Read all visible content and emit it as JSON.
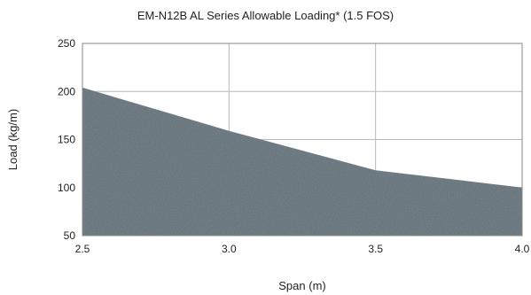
{
  "chart_data": {
    "type": "area",
    "title": "EM-N12B AL Series Allowable Loading* (1.5 FOS)",
    "xlabel": "Span (m)",
    "ylabel": "Load (kg/m)",
    "x": [
      2.5,
      3.0,
      3.5,
      4.0
    ],
    "x_tick_labels": [
      "2.5",
      "3.0",
      "3.5",
      "4.0"
    ],
    "y_ticks": [
      50,
      100,
      150,
      200,
      250
    ],
    "y_tick_labels": [
      "50",
      "100",
      "150",
      "200",
      "250"
    ],
    "xlim": [
      2.5,
      4.0
    ],
    "ylim": [
      50,
      250
    ],
    "series": [
      {
        "values": [
          204,
          159,
          118,
          100
        ]
      }
    ],
    "grid": true,
    "legend": "none",
    "colors": {
      "area_fill": "#5f6c74",
      "grid": "#b9b9b9",
      "frame": "#888888"
    }
  }
}
